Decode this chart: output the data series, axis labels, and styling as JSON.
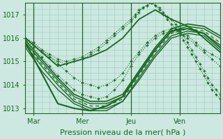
{
  "background_color": "#cce8e0",
  "grid_color": "#99ccbb",
  "line_color": "#1a6620",
  "ylim": [
    1012.8,
    1017.5
  ],
  "xlim": [
    0,
    96
  ],
  "yticks": [
    1013,
    1014,
    1015,
    1016,
    1017
  ],
  "xtick_positions": [
    4,
    28,
    52,
    76
  ],
  "xtick_labels": [
    "Mar",
    "Mer",
    "Jeu",
    "Ven"
  ],
  "xlabel": "Pression niveau de la mer( hPa )",
  "xlabel_fontsize": 8,
  "ytick_fontsize": 7,
  "xtick_fontsize": 7,
  "lines": [
    {
      "x": [
        0,
        4,
        8,
        12,
        16,
        20,
        24,
        28,
        32,
        36,
        40,
        44,
        48,
        52,
        56,
        60,
        64,
        68,
        72,
        76,
        80,
        84,
        88,
        92,
        96
      ],
      "y": [
        1016.0,
        1015.8,
        1015.5,
        1015.2,
        1014.9,
        1014.6,
        1014.3,
        1014.1,
        1014.0,
        1013.9,
        1014.0,
        1014.2,
        1014.5,
        1015.0,
        1015.4,
        1015.8,
        1016.1,
        1016.3,
        1016.4,
        1016.3,
        1016.1,
        1015.8,
        1015.5,
        1015.3,
        1015.1
      ],
      "style": "dotted_marker",
      "lw": 0.8
    },
    {
      "x": [
        0,
        4,
        8,
        12,
        16,
        20,
        24,
        28,
        32,
        36,
        40,
        44,
        48,
        52,
        56,
        60,
        64,
        68,
        72,
        76,
        80,
        84,
        88,
        92,
        96
      ],
      "y": [
        1015.9,
        1015.6,
        1015.2,
        1014.8,
        1014.4,
        1014.1,
        1013.8,
        1013.6,
        1013.5,
        1013.4,
        1013.5,
        1013.8,
        1014.2,
        1014.8,
        1015.3,
        1015.7,
        1016.0,
        1016.2,
        1016.3,
        1016.2,
        1016.0,
        1015.7,
        1015.4,
        1015.1,
        1014.8
      ],
      "style": "dotted_marker",
      "lw": 0.8
    },
    {
      "x": [
        0,
        8,
        16,
        24,
        32,
        40,
        48,
        56,
        64,
        72,
        80,
        88,
        96
      ],
      "y": [
        1015.8,
        1015.0,
        1014.2,
        1013.5,
        1013.2,
        1013.2,
        1013.5,
        1014.5,
        1015.5,
        1016.3,
        1016.5,
        1016.4,
        1016.0
      ],
      "style": "solid",
      "lw": 1.0
    },
    {
      "x": [
        0,
        8,
        16,
        24,
        32,
        40,
        48,
        56,
        64,
        72,
        80,
        88,
        96
      ],
      "y": [
        1015.7,
        1014.8,
        1014.0,
        1013.3,
        1013.0,
        1013.0,
        1013.3,
        1014.3,
        1015.3,
        1016.1,
        1016.3,
        1016.2,
        1015.7
      ],
      "style": "solid",
      "lw": 1.0
    },
    {
      "x": [
        0,
        8,
        16,
        24,
        32,
        40,
        48,
        56,
        64,
        72,
        80,
        88,
        96
      ],
      "y": [
        1015.9,
        1015.1,
        1014.3,
        1013.6,
        1013.3,
        1013.3,
        1013.6,
        1014.6,
        1015.6,
        1016.4,
        1016.6,
        1016.5,
        1016.1
      ],
      "style": "solid",
      "lw": 1.2
    },
    {
      "x": [
        0,
        8,
        16,
        24,
        32,
        40,
        48,
        56,
        64,
        72,
        80,
        88,
        96
      ],
      "y": [
        1015.8,
        1014.9,
        1014.1,
        1013.4,
        1013.1,
        1013.1,
        1013.4,
        1014.4,
        1015.4,
        1016.2,
        1016.4,
        1016.3,
        1015.8
      ],
      "style": "dashed",
      "lw": 0.9
    },
    {
      "x": [
        0,
        8,
        16,
        24,
        32,
        40,
        48,
        56,
        64,
        72,
        80,
        88,
        96
      ],
      "y": [
        1015.6,
        1014.6,
        1013.8,
        1013.2,
        1012.9,
        1012.9,
        1013.3,
        1014.2,
        1015.2,
        1016.0,
        1016.2,
        1016.1,
        1015.5
      ],
      "style": "solid",
      "lw": 1.0
    },
    {
      "x": [
        0,
        8,
        16,
        24,
        32,
        40,
        48,
        56,
        64,
        72,
        80,
        84,
        88,
        92,
        96
      ],
      "y": [
        1016.0,
        1015.4,
        1014.8,
        1015.0,
        1015.2,
        1015.5,
        1016.0,
        1016.8,
        1017.2,
        1016.8,
        1016.5,
        1016.3,
        1016.0,
        1015.7,
        1015.4
      ],
      "style": "solid",
      "lw": 1.3
    },
    {
      "x": [
        0,
        4,
        8,
        12,
        16,
        20,
        24,
        28,
        32,
        36,
        40,
        44,
        48,
        52,
        54,
        56,
        58,
        60,
        62,
        64,
        66,
        68,
        70,
        72,
        74,
        76,
        78,
        80,
        82,
        84,
        86,
        88,
        90,
        92,
        94,
        96
      ],
      "y": [
        1015.9,
        1015.7,
        1015.4,
        1015.2,
        1015.0,
        1014.9,
        1015.0,
        1015.1,
        1015.3,
        1015.5,
        1015.8,
        1016.1,
        1016.4,
        1016.7,
        1016.9,
        1017.1,
        1017.3,
        1017.4,
        1017.5,
        1017.4,
        1017.3,
        1017.1,
        1016.9,
        1016.8,
        1016.6,
        1016.4,
        1016.1,
        1015.8,
        1015.5,
        1015.2,
        1014.9,
        1014.6,
        1014.3,
        1014.0,
        1013.8,
        1013.6
      ],
      "style": "dotted_marker",
      "lw": 0.8
    },
    {
      "x": [
        0,
        4,
        8,
        12,
        16,
        20,
        24,
        28,
        32,
        36,
        40,
        44,
        48,
        52,
        54,
        56,
        58,
        60,
        62,
        64,
        66,
        68,
        70,
        72,
        74,
        76,
        78,
        80,
        82,
        84,
        86,
        88,
        90,
        92,
        94,
        96
      ],
      "y": [
        1016.0,
        1015.8,
        1015.5,
        1015.3,
        1015.1,
        1015.0,
        1015.1,
        1015.2,
        1015.4,
        1015.6,
        1015.9,
        1016.2,
        1016.5,
        1016.8,
        1017.0,
        1017.2,
        1017.3,
        1017.4,
        1017.5,
        1017.4,
        1017.2,
        1017.0,
        1016.8,
        1016.6,
        1016.4,
        1016.2,
        1015.9,
        1015.6,
        1015.3,
        1015.0,
        1014.7,
        1014.4,
        1014.1,
        1013.8,
        1013.6,
        1013.4
      ],
      "style": "dotted_marker",
      "lw": 0.8
    },
    {
      "x": [
        0,
        16,
        24,
        32,
        40,
        48,
        56,
        64,
        72,
        80,
        88,
        96
      ],
      "y": [
        1015.8,
        1013.2,
        1013.0,
        1012.9,
        1013.1,
        1013.5,
        1014.5,
        1015.5,
        1016.3,
        1016.4,
        1016.2,
        1015.6
      ],
      "style": "solid",
      "lw": 1.5
    }
  ],
  "vlines": [
    4,
    28,
    52,
    76
  ],
  "vline_color": "#226622",
  "vline_lw": 0.9
}
